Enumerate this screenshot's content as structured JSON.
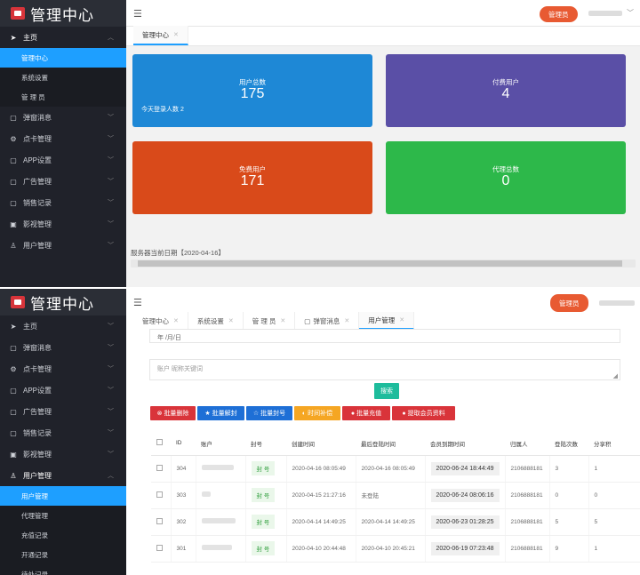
{
  "app": {
    "logo_text": "管理中心"
  },
  "header": {
    "admin_label": "管理员"
  },
  "panel1": {
    "sidebar": {
      "home": "主页",
      "home_subs": [
        "管理中心",
        "系统设置",
        "管 理 员"
      ],
      "items": [
        "弹窗消息",
        "点卡管理",
        "APP设置",
        "广告管理",
        "销售记录",
        "影视管理",
        "用户管理"
      ]
    },
    "tabs": [
      "管理中心"
    ],
    "cards": [
      {
        "label": "用户总数",
        "value": "175",
        "note": "今天登录人数 2",
        "color": "#1e88d6"
      },
      {
        "label": "付费用户",
        "value": "4",
        "color": "#5a4fa6"
      },
      {
        "label": "免费用户",
        "value": "171",
        "color": "#d94a1a"
      },
      {
        "label": "代理总数",
        "value": "0",
        "color": "#2db84a"
      }
    ],
    "server_date": "服务器当前日期【2020-04-16】"
  },
  "panel2": {
    "sidebar": {
      "top_items": [
        "主页",
        "弹窗消息",
        "点卡管理",
        "APP设置",
        "广告管理",
        "销售记录",
        "影视管理"
      ],
      "user_mgmt": "用户管理",
      "subs": [
        "用户管理",
        "代理管理",
        "充值记录",
        "开通记录",
        "待处记录"
      ]
    },
    "tabs": [
      "管理中心",
      "系统设置",
      "管 理 员",
      "弹窗消息",
      "用户管理"
    ],
    "date_placeholder": "年 /月/日",
    "search_placeholder": "账户 昵称关键词",
    "search_button": "搜索",
    "actions": [
      {
        "label": "批量删除",
        "icon": "⊗",
        "color": "#d9343a"
      },
      {
        "label": "批量解封",
        "icon": "★",
        "color": "#1e6fd6"
      },
      {
        "label": "批量封号",
        "icon": "☆",
        "color": "#1e6fd6"
      },
      {
        "label": "时间补偿",
        "icon": "◐",
        "color": "#f5a623"
      },
      {
        "label": "批量充值",
        "icon": "●",
        "color": "#d9343a"
      },
      {
        "label": "提取会员资料",
        "icon": "●",
        "color": "#d9343a"
      }
    ],
    "table": {
      "headers": [
        "ID",
        "账户",
        "封号",
        "创建时间",
        "最后登陆时间",
        "会员到期时间",
        "归属人",
        "登陆次数",
        "分享积"
      ],
      "rows": [
        {
          "id": "304",
          "seal": "封 号",
          "created": "2020-04-16 08:05:49",
          "last": "2020-04-16 08:05:49",
          "expire": "2020-06-24 18:44:49",
          "owner": "2106888181",
          "logins": "3",
          "share": "1"
        },
        {
          "id": "303",
          "seal": "封 号",
          "created": "2020-04-15 21:27:16",
          "last": "未登陆",
          "expire": "2020-06-24 08:06:16",
          "owner": "2106888181",
          "logins": "0",
          "share": "0"
        },
        {
          "id": "302",
          "seal": "封 号",
          "created": "2020-04-14 14:49:25",
          "last": "2020-04-14 14:49:25",
          "expire": "2020-06-23 01:28:25",
          "owner": "2106888181",
          "logins": "5",
          "share": "5"
        },
        {
          "id": "301",
          "seal": "封 号",
          "created": "2020-04-10 20:44:48",
          "last": "2020-04-10 20:45:21",
          "expire": "2020-06-19 07:23:48",
          "owner": "2106888181",
          "logins": "9",
          "share": "1"
        }
      ]
    }
  }
}
